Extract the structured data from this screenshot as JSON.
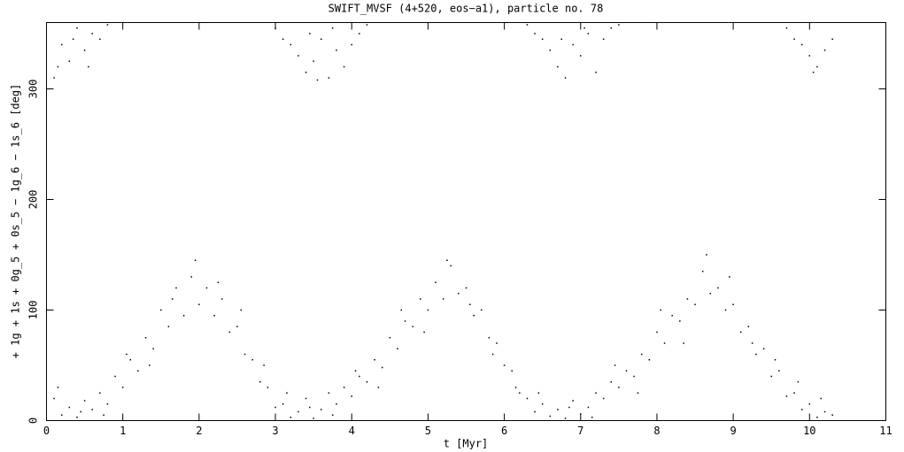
{
  "chart_data": {
    "type": "scatter",
    "title": "SWIFT_MVSF (4+520, eos−a1), particle no. 78",
    "x_label": "t [Myr]",
    "y_label": "+ 1g + 1s + 0g_5 + 0s_5 − 1g_6 − 1s_6 [deg]",
    "color": "#000000",
    "xlim": [
      0,
      11
    ],
    "xticks": [
      0,
      1,
      2,
      3,
      4,
      5,
      6,
      7,
      8,
      9,
      10,
      11
    ],
    "ylim": [
      0,
      360
    ],
    "yticks": [
      0,
      100,
      200,
      300
    ],
    "x": [
      0.1,
      0.2,
      0.3,
      0.4,
      0.5,
      0.6,
      0.7,
      0.8,
      0.9,
      1.0,
      1.1,
      1.2,
      1.3,
      1.4,
      1.5,
      1.6,
      1.7,
      1.8,
      1.9,
      2.0,
      2.1,
      2.2,
      2.3,
      2.4,
      2.5,
      2.6,
      2.7,
      2.8,
      2.9,
      3.0,
      3.1,
      3.2,
      3.3,
      3.4,
      3.5,
      3.6,
      3.7,
      3.8,
      3.9,
      4.0,
      4.1,
      4.2,
      4.3,
      4.4,
      4.5,
      4.6,
      4.7,
      4.8,
      4.9,
      5.0,
      5.1,
      5.2,
      5.3,
      5.4,
      5.5,
      5.6,
      5.7,
      5.8,
      5.9,
      6.0,
      6.1,
      6.2,
      6.3,
      6.4,
      6.5,
      6.6,
      6.7,
      6.8,
      6.9,
      7.0,
      7.1,
      7.2,
      7.3,
      7.4,
      7.5,
      7.6,
      7.7,
      7.8,
      7.9,
      8.0,
      8.1,
      8.2,
      8.3,
      8.4,
      8.5,
      8.6,
      8.7,
      8.8,
      8.9,
      9.0,
      9.1,
      9.2,
      9.3,
      9.4,
      9.5,
      9.6,
      9.7,
      9.8,
      9.9,
      10.0,
      10.1,
      10.2,
      10.3,
      0.15,
      0.45,
      0.75,
      1.05,
      1.35,
      1.65,
      1.95,
      2.25,
      2.55,
      2.85,
      3.15,
      3.45,
      3.75,
      4.05,
      4.35,
      4.65,
      4.95,
      5.25,
      5.55,
      5.85,
      6.15,
      6.45,
      6.85,
      7.15,
      7.45,
      7.75,
      8.05,
      8.35,
      8.65,
      8.95,
      9.25,
      9.55,
      9.85,
      10.15,
      0.1,
      0.2,
      0.3,
      0.4,
      0.5,
      0.6,
      0.7,
      0.8,
      0.15,
      0.35,
      0.55,
      3.0,
      3.1,
      3.2,
      3.3,
      3.4,
      3.5,
      3.6,
      3.7,
      3.8,
      3.9,
      4.0,
      4.1,
      4.2,
      3.45,
      3.75,
      3.55,
      6.3,
      6.4,
      6.5,
      6.6,
      6.7,
      6.8,
      6.9,
      7.0,
      7.1,
      7.2,
      7.3,
      7.4,
      7.5,
      6.75,
      7.05,
      9.7,
      9.8,
      9.9,
      10.0,
      10.1,
      10.2,
      10.3,
      10.05
    ],
    "values": [
      20,
      5,
      12,
      3,
      18,
      10,
      25,
      15,
      40,
      30,
      55,
      45,
      75,
      65,
      100,
      85,
      120,
      95,
      130,
      105,
      120,
      95,
      110,
      80,
      85,
      60,
      55,
      35,
      30,
      12,
      15,
      3,
      8,
      20,
      2,
      10,
      25,
      15,
      30,
      22,
      40,
      35,
      55,
      48,
      75,
      65,
      90,
      85,
      110,
      100,
      125,
      110,
      140,
      115,
      120,
      95,
      100,
      75,
      70,
      50,
      45,
      25,
      20,
      8,
      15,
      4,
      10,
      2,
      18,
      6,
      12,
      25,
      20,
      35,
      30,
      45,
      40,
      60,
      55,
      80,
      70,
      95,
      90,
      110,
      105,
      135,
      115,
      120,
      100,
      105,
      80,
      85,
      60,
      65,
      40,
      45,
      22,
      25,
      10,
      15,
      3,
      8,
      5,
      30,
      8,
      5,
      60,
      50,
      110,
      145,
      125,
      100,
      50,
      25,
      12,
      5,
      45,
      30,
      100,
      80,
      145,
      105,
      60,
      30,
      25,
      12,
      3,
      50,
      25,
      100,
      70,
      150,
      130,
      70,
      55,
      35,
      20,
      310,
      340,
      325,
      355,
      335,
      350,
      345,
      358,
      320,
      345,
      320,
      355,
      345,
      340,
      330,
      315,
      325,
      345,
      310,
      335,
      320,
      340,
      350,
      358,
      350,
      355,
      308,
      358,
      350,
      345,
      335,
      320,
      310,
      340,
      330,
      350,
      315,
      345,
      355,
      358,
      345,
      355,
      355,
      345,
      340,
      330,
      320,
      335,
      345,
      315
    ]
  }
}
